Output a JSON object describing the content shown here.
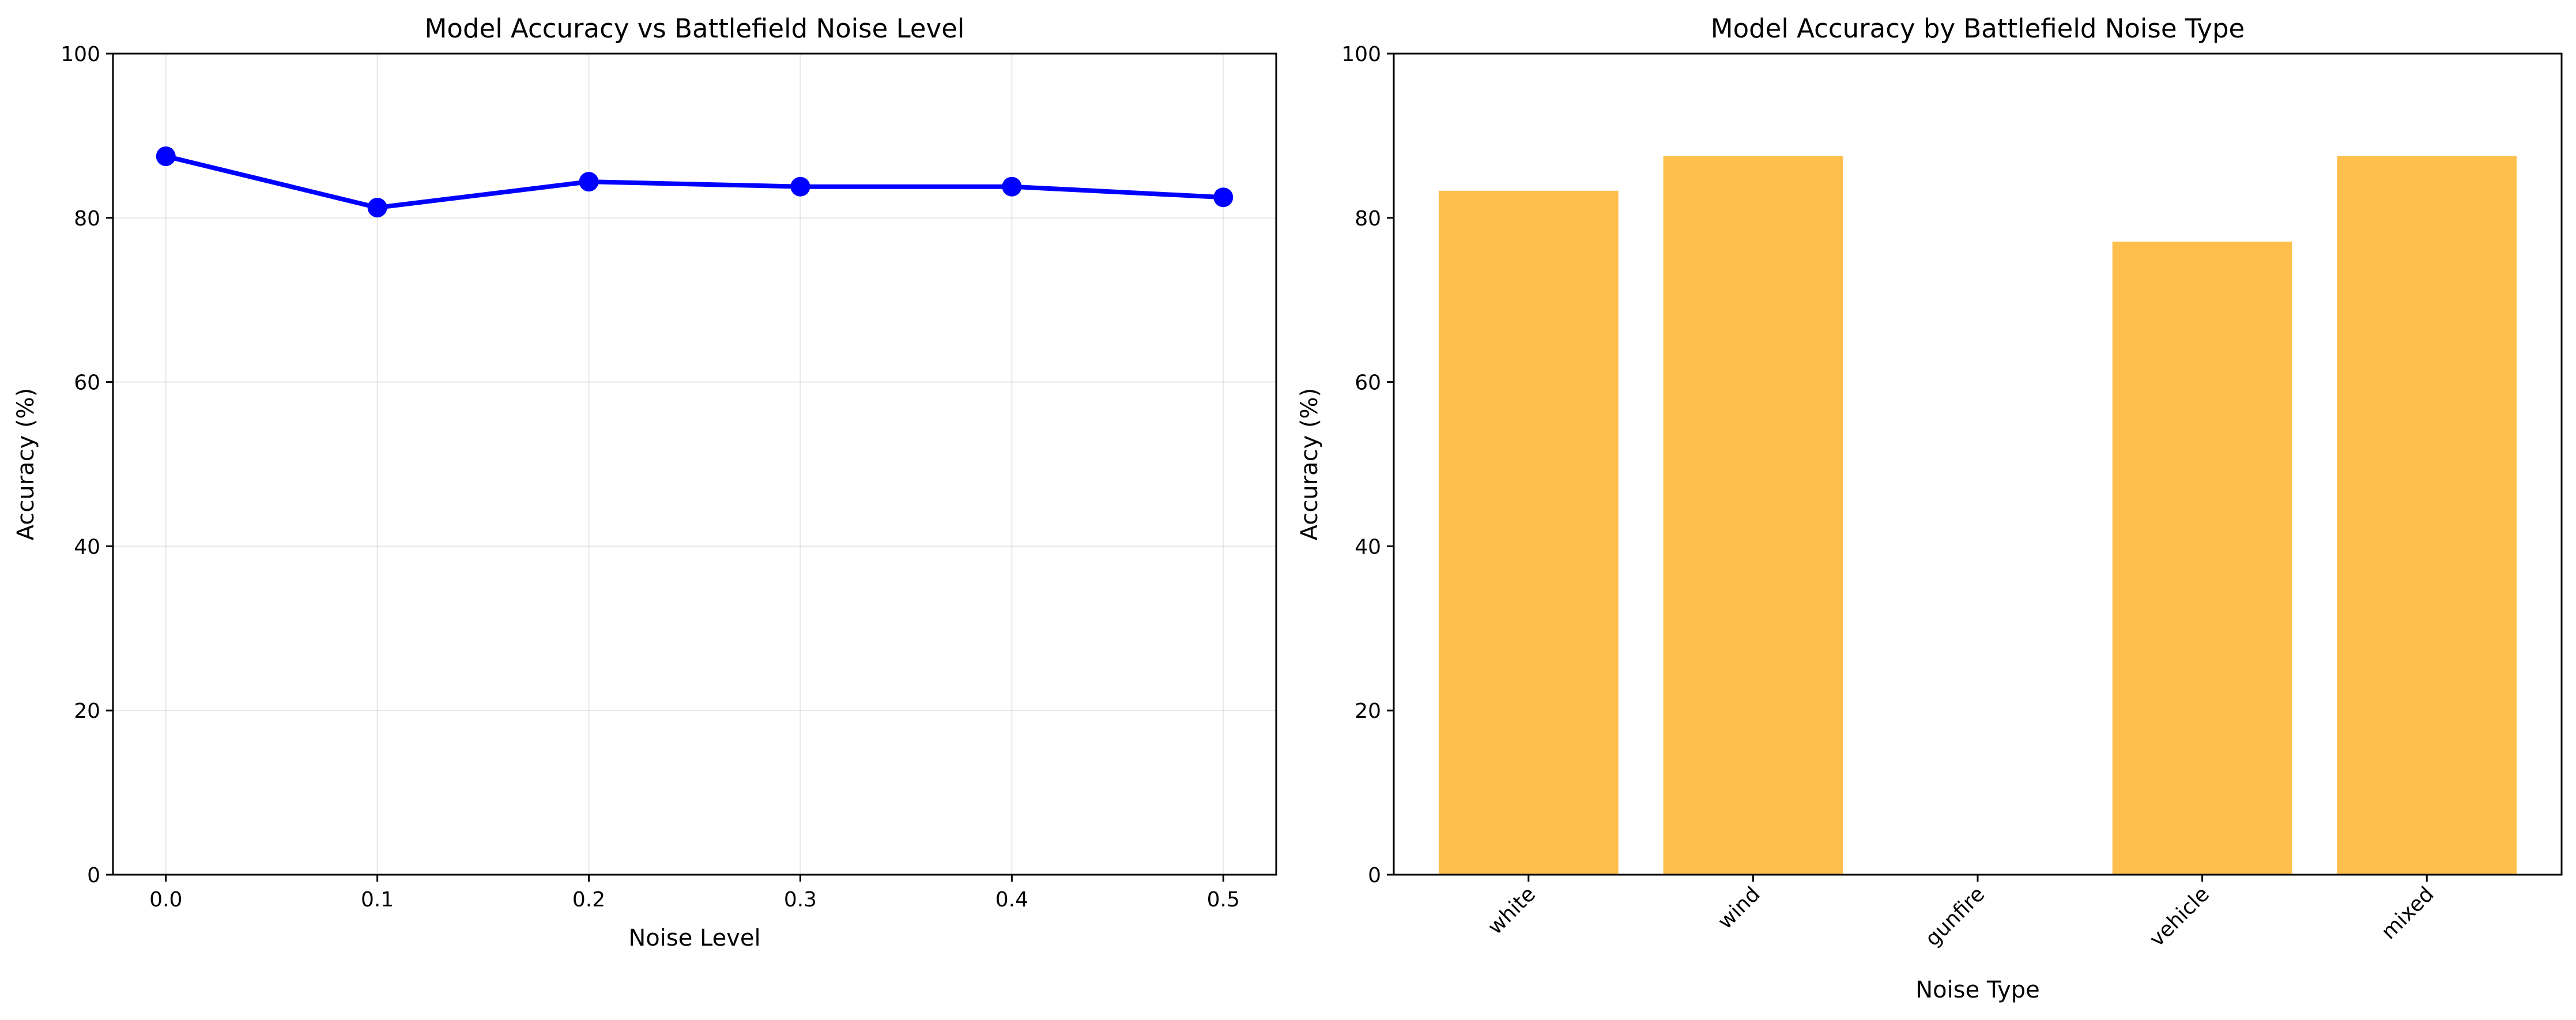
{
  "colors": {
    "line": "#0000ff",
    "bar": "#ffbf4d"
  },
  "chart_data": [
    {
      "type": "line",
      "title": "Model Accuracy vs Battlefield Noise Level",
      "xlabel": "Noise Level",
      "ylabel": "Accuracy (%)",
      "x": [
        0.0,
        0.1,
        0.2,
        0.3,
        0.4,
        0.5
      ],
      "x_tick_labels": [
        "0.0",
        "0.1",
        "0.2",
        "0.3",
        "0.4",
        "0.5"
      ],
      "series": [
        {
          "values": [
            87.5,
            81.25,
            84.4,
            83.8,
            83.8,
            82.5
          ]
        }
      ],
      "xlim": [
        -0.025,
        0.525
      ],
      "ylim": [
        0,
        100
      ],
      "y_ticks": [
        0,
        20,
        40,
        60,
        80,
        100
      ],
      "y_tick_labels": [
        "0",
        "20",
        "40",
        "60",
        "80",
        "100"
      ],
      "grid": true,
      "marker": "circle"
    },
    {
      "type": "bar",
      "title": "Model Accuracy by Battlefield Noise Type",
      "xlabel": "Noise Type",
      "ylabel": "Accuracy (%)",
      "categories": [
        "white",
        "wind",
        "gunfire",
        "vehicle",
        "mixed"
      ],
      "values": [
        83.3,
        87.5,
        0,
        77.1,
        87.5
      ],
      "ylim": [
        0,
        100
      ],
      "y_ticks": [
        0,
        20,
        40,
        60,
        80,
        100
      ],
      "y_tick_labels": [
        "0",
        "20",
        "40",
        "60",
        "80",
        "100"
      ],
      "grid": false,
      "tick_rotation": 45
    }
  ]
}
